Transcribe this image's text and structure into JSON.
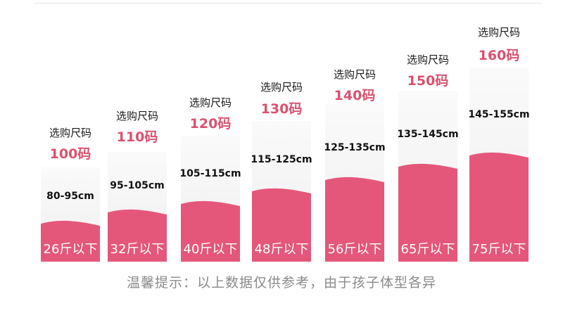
{
  "columns": [
    {
      "choose_label": "选购尺码",
      "size": "100码",
      "height_range": "80-95cm",
      "weight": "26斤以下"
    },
    {
      "choose_label": "选购尺码",
      "size": "110码",
      "height_range": "95-105cm",
      "weight": "32斤以下"
    },
    {
      "choose_label": "选购尺码",
      "size": "120码",
      "height_range": "105-115cm",
      "weight": "40斤以下"
    },
    {
      "choose_label": "选购尺码",
      "size": "130码",
      "height_range": "115-125cm",
      "weight": "48斤以下"
    },
    {
      "choose_label": "选购尺码",
      "size": "140码",
      "height_range": "125-135cm",
      "weight": "56斤以下"
    },
    {
      "choose_label": "选购尺码",
      "size": "150码",
      "height_range": "135-145cm",
      "weight": "65斤以下"
    },
    {
      "choose_label": "选购尺码",
      "size": "160码",
      "height_range": "145-155cm",
      "weight": "75斤以下"
    }
  ],
  "footer_note": "温馨提示：以上数据仅供参考，由于孩子体型各异",
  "colors": {
    "fill": "#e4577a",
    "size_text": "#d9526e"
  }
}
